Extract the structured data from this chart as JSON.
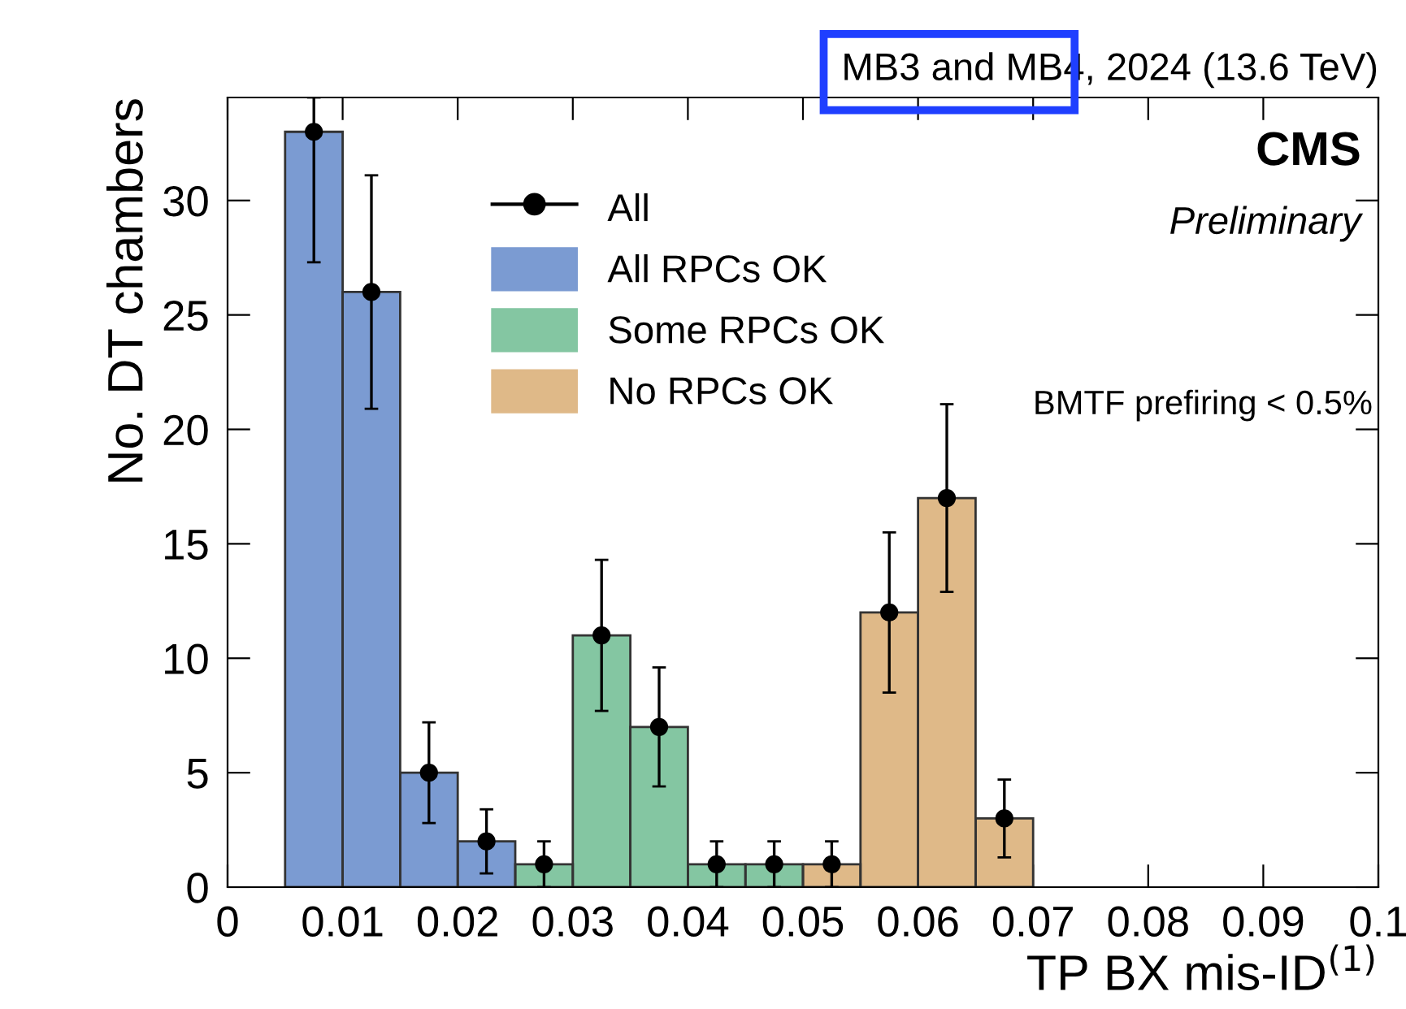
{
  "chart_data": {
    "type": "histogram",
    "title": "MB3 and MB4, 2024 (13.6 TeV)",
    "xlabel": "TP BX mis-ID$^{(1)}$",
    "ylabel": "No. DT chambers",
    "annotations": [
      "CMS",
      "Preliminary",
      "BMTF prefiring < 0.5%"
    ],
    "bins": [
      0.005,
      0.01,
      0.015,
      0.02,
      0.025,
      0.03,
      0.035,
      0.04,
      0.045,
      0.05,
      0.055,
      0.06,
      0.065,
      0.07
    ],
    "series": [
      {
        "name": "All",
        "type": "scatter",
        "color": "#000000",
        "marker": "circle",
        "x": [
          0.0075,
          0.0125,
          0.0175,
          0.0225,
          0.0275,
          0.0325,
          0.0375,
          0.0425,
          0.0475,
          0.0525,
          0.0575,
          0.0625,
          0.0675
        ],
        "values": [
          33,
          26,
          5,
          2,
          1,
          11,
          7,
          1,
          1,
          1,
          12,
          17,
          3
        ],
        "errors": [
          [
            27.3,
            34.5
          ],
          5.1,
          2.2,
          1.4,
          1,
          3.3,
          2.6,
          1,
          1,
          1,
          3.5,
          4.1,
          1.7
        ]
      },
      {
        "name": "All RPCs OK",
        "color": "#7b9bd2",
        "values": [
          33,
          26,
          5,
          2,
          null,
          null,
          null,
          null,
          null,
          null,
          null,
          null,
          null
        ]
      },
      {
        "name": "Some RPCs OK",
        "color": "#84c6a2",
        "values": [
          null,
          null,
          null,
          null,
          1,
          11,
          7,
          1,
          1,
          null,
          null,
          null,
          null
        ]
      },
      {
        "name": "No RPCs OK",
        "color": "#dfb988",
        "values": [
          null,
          null,
          null,
          null,
          null,
          null,
          null,
          null,
          null,
          1,
          12,
          17,
          3
        ]
      }
    ],
    "xlim": [
      0,
      0.1
    ],
    "ylim": [
      0,
      34.5
    ],
    "xticks": [
      0,
      0.01,
      0.02,
      0.03,
      0.04,
      0.05,
      0.06,
      0.07,
      0.08,
      0.09,
      0.1
    ],
    "yticks": [
      0,
      5,
      10,
      15,
      20,
      25,
      30
    ],
    "grid": false,
    "legend": "top left"
  }
}
